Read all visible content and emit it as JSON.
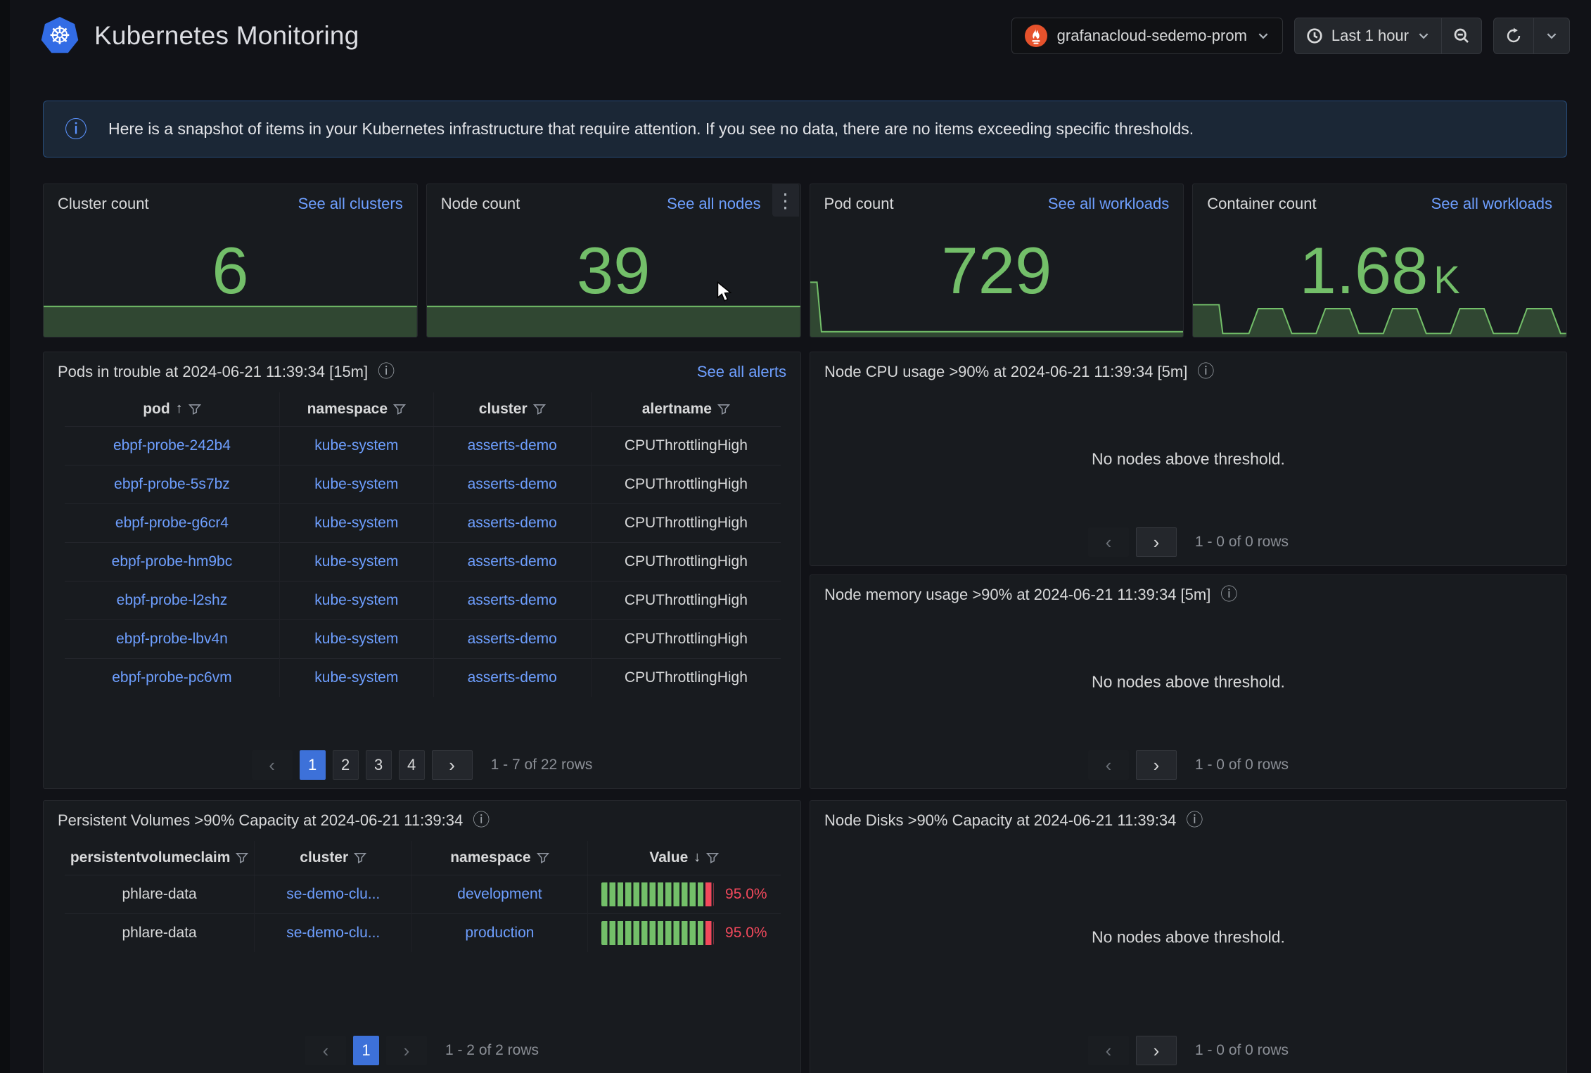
{
  "page_title": "Kubernetes Monitoring",
  "toolbar": {
    "datasource": "grafanacloud-sedemo-prom",
    "time_range": "Last 1 hour"
  },
  "banner": {
    "text": "Here is a snapshot of items in your Kubernetes infrastructure that require attention. If you see no data, there are no items exceeding specific thresholds."
  },
  "icons": {
    "info": "ⓘ",
    "sort_asc": "↑",
    "sort_desc": "↓",
    "prev": "‹",
    "next": "›",
    "kebab": "⋮"
  },
  "colors": {
    "green": "#73bf69",
    "red": "#f2495c",
    "link_blue": "#6e9fff",
    "active_page_blue": "#3d71d9",
    "prometheus_orange": "#e6522c",
    "kubernetes_blue": "#326ce5"
  },
  "stats": [
    {
      "title": "Cluster count",
      "link": "See all clusters",
      "value": "6",
      "suffix": "",
      "sparkline": [
        [
          0,
          54
        ],
        [
          100,
          54
        ]
      ]
    },
    {
      "title": "Node count",
      "link": "See all nodes",
      "value": "39",
      "suffix": "",
      "sparkline": [
        [
          0,
          54
        ],
        [
          100,
          54
        ]
      ]
    },
    {
      "title": "Pod count",
      "link": "See all workloads",
      "value": "729",
      "suffix": "",
      "sparkline": [
        [
          0,
          97
        ],
        [
          1.8,
          97
        ],
        [
          3,
          9
        ],
        [
          100,
          9
        ]
      ]
    },
    {
      "title": "Container count",
      "link": "See all workloads",
      "value": "1.68",
      "suffix": "K",
      "sparkline": [
        [
          0,
          57
        ],
        [
          7,
          57
        ],
        [
          8,
          6
        ],
        [
          15,
          6
        ],
        [
          17.5,
          50
        ],
        [
          24,
          50
        ],
        [
          26.5,
          6
        ],
        [
          33,
          6
        ],
        [
          35.5,
          50
        ],
        [
          42,
          50
        ],
        [
          44.5,
          6
        ],
        [
          51,
          6
        ],
        [
          53.5,
          50
        ],
        [
          60,
          50
        ],
        [
          62.5,
          6
        ],
        [
          69,
          6
        ],
        [
          71.5,
          50
        ],
        [
          78,
          50
        ],
        [
          80.5,
          6
        ],
        [
          87,
          6
        ],
        [
          89.5,
          50
        ],
        [
          96,
          50
        ],
        [
          98.5,
          6
        ],
        [
          100,
          6
        ]
      ]
    }
  ],
  "pods_table": {
    "title": "Pods in trouble at 2024-06-21 11:39:34 [15m]",
    "link": "See all alerts",
    "columns": [
      "pod",
      "namespace",
      "cluster",
      "alertname"
    ],
    "rows": [
      {
        "pod": "ebpf-probe-242b4",
        "namespace": "kube-system",
        "cluster": "asserts-demo",
        "alertname": "CPUThrottlingHigh"
      },
      {
        "pod": "ebpf-probe-5s7bz",
        "namespace": "kube-system",
        "cluster": "asserts-demo",
        "alertname": "CPUThrottlingHigh"
      },
      {
        "pod": "ebpf-probe-g6cr4",
        "namespace": "kube-system",
        "cluster": "asserts-demo",
        "alertname": "CPUThrottlingHigh"
      },
      {
        "pod": "ebpf-probe-hm9bc",
        "namespace": "kube-system",
        "cluster": "asserts-demo",
        "alertname": "CPUThrottlingHigh"
      },
      {
        "pod": "ebpf-probe-l2shz",
        "namespace": "kube-system",
        "cluster": "asserts-demo",
        "alertname": "CPUThrottlingHigh"
      },
      {
        "pod": "ebpf-probe-lbv4n",
        "namespace": "kube-system",
        "cluster": "asserts-demo",
        "alertname": "CPUThrottlingHigh"
      },
      {
        "pod": "ebpf-probe-pc6vm",
        "namespace": "kube-system",
        "cluster": "asserts-demo",
        "alertname": "CPUThrottlingHigh"
      }
    ],
    "pagination": {
      "pages": [
        "1",
        "2",
        "3",
        "4"
      ],
      "active_page": "1",
      "summary": "1 - 7 of 22 rows"
    }
  },
  "node_cpu": {
    "title": "Node CPU usage >90% at 2024-06-21 11:39:34 [5m]",
    "empty": "No nodes above threshold.",
    "pagination": {
      "summary": "1 - 0 of 0 rows"
    }
  },
  "node_memory": {
    "title": "Node memory usage >90% at 2024-06-21 11:39:34 [5m]",
    "empty": "No nodes above threshold.",
    "pagination": {
      "summary": "1 - 0 of 0 rows"
    }
  },
  "node_disks": {
    "title": "Node Disks >90% Capacity at 2024-06-21 11:39:34",
    "empty": "No nodes above threshold.",
    "pagination": {
      "summary": "1 - 0 of 0 rows"
    }
  },
  "pv_table": {
    "title": "Persistent Volumes >90% Capacity at 2024-06-21 11:39:34",
    "columns": [
      "persistentvolumeclaim",
      "cluster",
      "namespace",
      "Value"
    ],
    "rows": [
      {
        "persistentvolumeclaim": "phlare-data",
        "cluster": "se-demo-clu...",
        "namespace": "development",
        "value": "95.0%",
        "gauge_percent": 95
      },
      {
        "persistentvolumeclaim": "phlare-data",
        "cluster": "se-demo-clu...",
        "namespace": "production",
        "value": "95.0%",
        "gauge_percent": 95
      }
    ],
    "pagination": {
      "pages": [
        "1"
      ],
      "active_page": "1",
      "summary": "1 - 2 of 2 rows"
    }
  }
}
